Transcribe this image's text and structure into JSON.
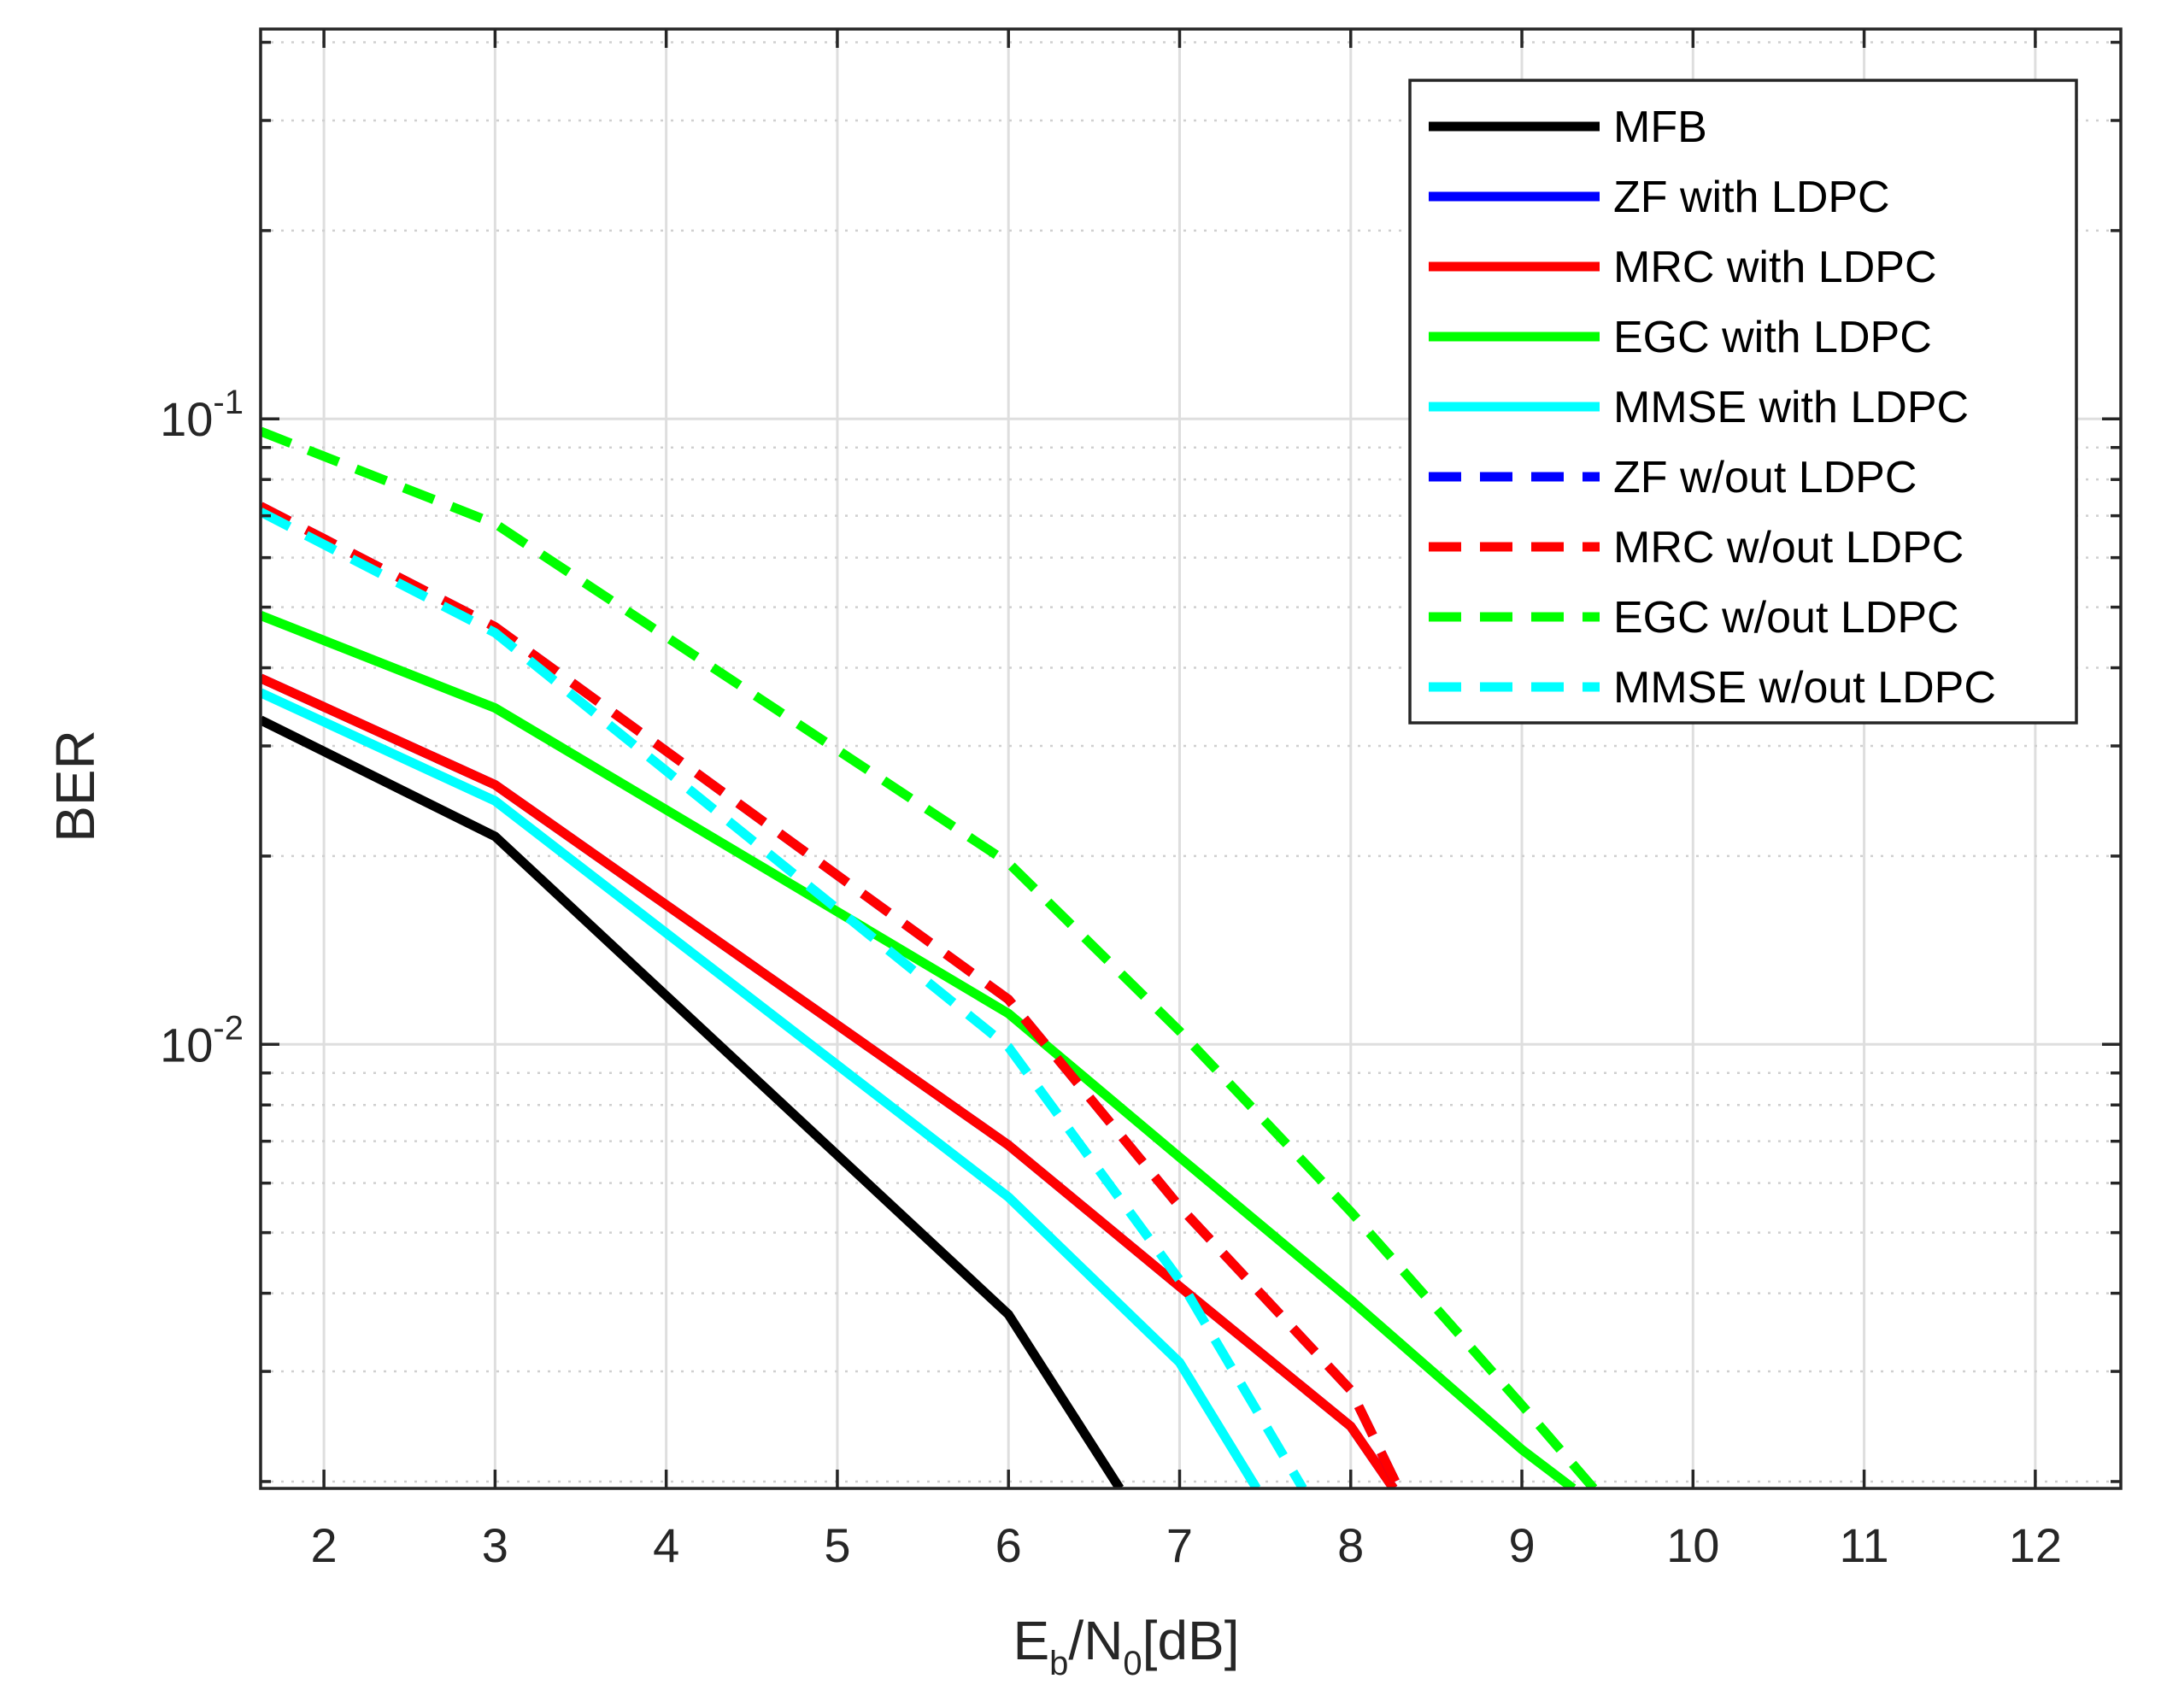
{
  "chart_data": {
    "type": "line",
    "title": "",
    "xlabel": {
      "main": "E",
      "sub1": "b",
      "mid": "/N",
      "sub2": "0",
      "tail": "[dB]"
    },
    "ylabel": "BER",
    "xlim": [
      1.63,
      12.5
    ],
    "ylim": [
      0.00195,
      0.42
    ],
    "yscale": "log",
    "grid": true,
    "legend_position": "top-right",
    "x_ticks": [
      2,
      3,
      4,
      5,
      6,
      7,
      8,
      9,
      10,
      11,
      12
    ],
    "x_tick_labels": [
      "2",
      "3",
      "4",
      "5",
      "6",
      "7",
      "8",
      "9",
      "10",
      "11",
      "12"
    ],
    "y_ticks": [
      0.1,
      0.01
    ],
    "y_tick_labels": [
      {
        "base": "10",
        "exp": "-1"
      },
      {
        "base": "10",
        "exp": "-2"
      }
    ],
    "series": [
      {
        "name": "MFB",
        "color": "#000000",
        "dash": "solid",
        "x": [
          1.63,
          3,
          6,
          6.65
        ],
        "y": [
          0.033,
          0.0215,
          0.0037,
          0.00195
        ]
      },
      {
        "name": "ZF with LDPC",
        "color": "#0000ff",
        "dash": "solid",
        "x": [
          1.63,
          3,
          6,
          7,
          8,
          8.25
        ],
        "y": [
          0.0385,
          0.026,
          0.0069,
          0.0041,
          0.00245,
          0.00195
        ]
      },
      {
        "name": "MRC with LDPC",
        "color": "#ff0000",
        "dash": "solid",
        "x": [
          1.63,
          3,
          6,
          7,
          8,
          8.25
        ],
        "y": [
          0.0385,
          0.026,
          0.0069,
          0.0041,
          0.00245,
          0.00195
        ]
      },
      {
        "name": "EGC with LDPC",
        "color": "#00ff00",
        "dash": "solid",
        "x": [
          1.63,
          3,
          6,
          7,
          8,
          9,
          9.3
        ],
        "y": [
          0.0485,
          0.0345,
          0.0112,
          0.0066,
          0.0039,
          0.00225,
          0.00195
        ]
      },
      {
        "name": "MMSE with LDPC",
        "color": "#00ffff",
        "dash": "solid",
        "x": [
          1.63,
          3,
          6,
          7,
          7.45
        ],
        "y": [
          0.0365,
          0.0245,
          0.0057,
          0.0031,
          0.00195
        ]
      },
      {
        "name": "ZF w/out LDPC",
        "color": "#0000ff",
        "dash": "dashed",
        "x": [
          1.63,
          3,
          6,
          7,
          8,
          8.28
        ],
        "y": [
          0.0725,
          0.0465,
          0.0118,
          0.0055,
          0.0028,
          0.00195
        ]
      },
      {
        "name": "MRC w/out LDPC",
        "color": "#ff0000",
        "dash": "dashed",
        "x": [
          1.63,
          3,
          6,
          7,
          8,
          8.28
        ],
        "y": [
          0.0725,
          0.0465,
          0.0118,
          0.0055,
          0.0028,
          0.00195
        ]
      },
      {
        "name": "EGC w/out LDPC",
        "color": "#00ff00",
        "dash": "dashed",
        "x": [
          1.63,
          3,
          6,
          7,
          8,
          9,
          9.42
        ],
        "y": [
          0.0955,
          0.068,
          0.0195,
          0.0105,
          0.0054,
          0.00265,
          0.00195
        ]
      },
      {
        "name": "MMSE w/out LDPC",
        "color": "#00ffff",
        "dash": "dashed",
        "x": [
          1.63,
          3,
          6,
          7,
          7.72
        ],
        "y": [
          0.071,
          0.0455,
          0.0099,
          0.0042,
          0.00195
        ]
      }
    ]
  }
}
